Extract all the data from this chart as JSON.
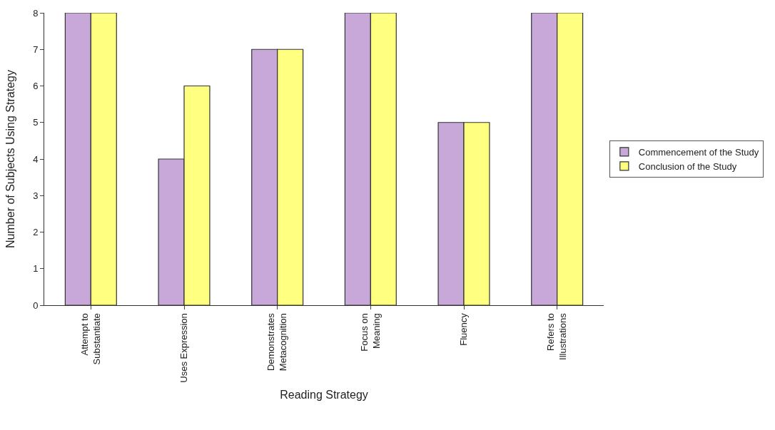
{
  "chart_data": {
    "type": "bar",
    "xlabel": "Reading Strategy",
    "ylabel": "Number of Subjects Using Strategy",
    "categories": [
      "Attempt to Substantiate",
      "Uses Expression",
      "Demonstrates Metacognition",
      "Focus on Meaning",
      "Fluency",
      "Refers to Illustrations"
    ],
    "series": [
      {
        "name": "Commencement of the Study",
        "color": "#c8a8d8",
        "values": [
          8,
          4,
          7,
          8,
          5,
          8
        ]
      },
      {
        "name": "Conclusion of the Study",
        "color": "#ffff80",
        "values": [
          8,
          6,
          7,
          8,
          5,
          8
        ]
      }
    ],
    "ylim": [
      0,
      8
    ],
    "yticks": [
      0,
      1,
      2,
      3,
      4,
      5,
      6,
      7,
      8
    ],
    "grid": false,
    "legend": "right"
  }
}
